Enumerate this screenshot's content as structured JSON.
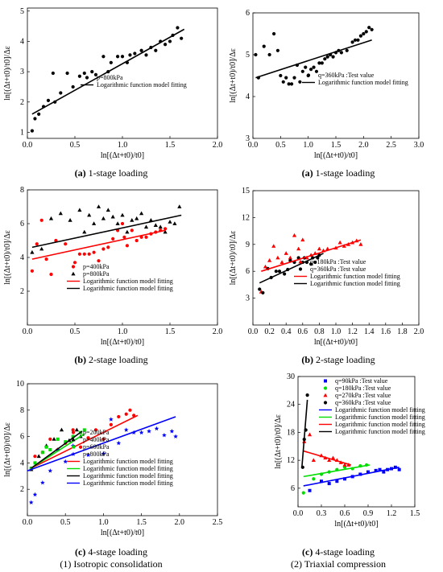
{
  "captions": [
    {
      "id": "a1",
      "label": "(a)",
      "text": " 1-stage loading"
    },
    {
      "id": "a2",
      "label": "(a)",
      "text": " 1-stage loading"
    },
    {
      "id": "b1",
      "label": "(b)",
      "text": " 2-stage loading"
    },
    {
      "id": "b2",
      "label": "(b)",
      "text": " 2-stage loading"
    },
    {
      "id": "c1",
      "label": "(c)",
      "text": " 4-stage loading"
    },
    {
      "id": "c2",
      "label": "(c)",
      "text": " 4-stage loading"
    }
  ],
  "group_titles": [
    "(1) Isotropic consolidation",
    "(2) Triaxial compression"
  ],
  "chart_data": [
    {
      "id": "a1",
      "type": "scatter",
      "xlabel": "ln[(Δt+t0)/t0]",
      "ylabel": "ln[(Δt+t0)/t0]/Δε",
      "xlim": [
        0,
        2.0
      ],
      "ylim": [
        0.8,
        5.1
      ],
      "xticks": [
        "0.0",
        "0.5",
        "1.0",
        "1.5",
        "2.0"
      ],
      "yticks": [
        "1",
        "2",
        "3",
        "4",
        "5"
      ],
      "series": [
        {
          "name": "p=800kPa",
          "marker": "circle",
          "color": "#000000",
          "x": [
            0.05,
            0.08,
            0.12,
            0.17,
            0.22,
            0.27,
            0.29,
            0.35,
            0.42,
            0.48,
            0.55,
            0.6,
            0.68,
            0.72,
            0.8,
            0.85,
            0.88,
            0.95,
            1.0,
            1.05,
            1.08,
            1.13,
            1.2,
            1.25,
            1.3,
            1.35,
            1.4,
            1.45,
            1.5,
            1.53,
            1.58,
            1.62
          ],
          "y": [
            1.05,
            1.45,
            1.6,
            1.85,
            2.05,
            2.95,
            2.0,
            2.3,
            2.95,
            2.5,
            2.85,
            2.95,
            3.0,
            2.9,
            3.5,
            3.0,
            3.3,
            3.5,
            3.5,
            3.3,
            3.55,
            3.6,
            3.7,
            3.55,
            3.8,
            3.7,
            4.0,
            3.9,
            4.0,
            4.2,
            4.45,
            4.1
          ]
        },
        {
          "name": "Logarithmic function model fitting",
          "type": "line",
          "color": "#000000",
          "x": [
            0.05,
            1.65
          ],
          "y": [
            1.6,
            4.4
          ]
        }
      ]
    },
    {
      "id": "a2",
      "type": "scatter",
      "xlabel": "ln[(Δt+t0)/t0]",
      "ylabel": "ln[(Δt+t0)/t0]/Δε",
      "xlim": [
        0,
        3.0
      ],
      "ylim": [
        3.0,
        6.0
      ],
      "xticks": [
        "0.0",
        "0.5",
        "1.0",
        "1.5",
        "2.0",
        "2.5",
        "3.0"
      ],
      "yticks": [
        "3",
        "4",
        "5",
        "6"
      ],
      "series": [
        {
          "name": "q=360kPa :Test value",
          "marker": "circle",
          "color": "#000000",
          "x": [
            0.05,
            0.1,
            0.2,
            0.3,
            0.38,
            0.45,
            0.5,
            0.55,
            0.6,
            0.65,
            0.7,
            0.75,
            0.8,
            0.85,
            0.9,
            0.95,
            1.0,
            1.05,
            1.1,
            1.15,
            1.2,
            1.25,
            1.3,
            1.35,
            1.4,
            1.45,
            1.5,
            1.55,
            1.6,
            1.7,
            1.8,
            1.85,
            1.9,
            1.95,
            2.0,
            2.05,
            2.1,
            2.15
          ],
          "y": [
            5.0,
            4.45,
            5.2,
            5.0,
            5.5,
            5.1,
            4.5,
            4.35,
            4.45,
            4.3,
            4.3,
            4.45,
            4.75,
            4.35,
            4.6,
            4.7,
            4.5,
            4.65,
            4.7,
            4.6,
            4.8,
            4.8,
            4.9,
            4.95,
            5.0,
            4.95,
            5.05,
            5.1,
            5.05,
            5.1,
            5.3,
            5.35,
            5.35,
            5.45,
            5.5,
            5.55,
            5.65,
            5.6
          ]
        },
        {
          "name": "Logarithmic function model fitting",
          "type": "line",
          "color": "#000000",
          "x": [
            0.05,
            2.15
          ],
          "y": [
            4.45,
            5.35
          ]
        }
      ]
    },
    {
      "id": "b1",
      "type": "scatter",
      "xlabel": "ln[(Δt+t0)/t0]",
      "ylabel": "ln[(Δt+t0)/t0]/Δε",
      "xlim": [
        0,
        2.0
      ],
      "ylim": [
        0,
        8
      ],
      "xticks": [
        "0.0",
        "0.5",
        "1.0",
        "1.5",
        "2.0"
      ],
      "yticks": [
        "2",
        "4",
        "6",
        "8"
      ],
      "series": [
        {
          "name": "p=400kPa",
          "marker": "circle",
          "color": "#ff0000",
          "x": [
            0.05,
            0.1,
            0.15,
            0.2,
            0.25,
            0.3,
            0.4,
            0.5,
            0.55,
            0.6,
            0.65,
            0.7,
            0.75,
            0.8,
            0.85,
            0.9,
            0.95,
            1.0,
            1.02,
            1.05,
            1.1,
            1.15,
            1.2,
            1.25,
            1.3,
            1.35,
            1.4,
            1.45
          ],
          "y": [
            3.2,
            4.8,
            6.2,
            3.9,
            3.0,
            5.0,
            4.8,
            3.7,
            4.2,
            4.2,
            4.2,
            4.3,
            3.8,
            4.5,
            4.6,
            5.1,
            5.6,
            6.0,
            5.2,
            4.7,
            5.6,
            5.0,
            5.2,
            5.2,
            5.4,
            5.5,
            5.6,
            5.7
          ]
        },
        {
          "name": "p=800kPa",
          "marker": "triangle",
          "color": "#000000",
          "x": [
            0.05,
            0.15,
            0.25,
            0.35,
            0.45,
            0.55,
            0.6,
            0.65,
            0.7,
            0.75,
            0.8,
            0.85,
            0.9,
            0.95,
            1.0,
            1.05,
            1.1,
            1.15,
            1.2,
            1.25,
            1.3,
            1.35,
            1.4,
            1.45,
            1.5,
            1.55,
            1.6
          ],
          "y": [
            4.3,
            4.5,
            6.3,
            6.6,
            6.2,
            6.8,
            5.5,
            6.5,
            6.0,
            7.0,
            6.3,
            6.8,
            6.4,
            6.0,
            6.5,
            5.5,
            6.2,
            6.3,
            6.6,
            5.8,
            6.2,
            5.9,
            5.8,
            5.5,
            6.1,
            6.0,
            7.0
          ]
        },
        {
          "name": "Logarithmic function model fitting",
          "type": "line",
          "color": "#ff0000",
          "x": [
            0.05,
            1.45
          ],
          "y": [
            3.9,
            5.6
          ]
        },
        {
          "name": "Logarithmic function model fitting",
          "type": "line",
          "color": "#000000",
          "x": [
            0.05,
            1.62
          ],
          "y": [
            4.6,
            6.5
          ]
        }
      ]
    },
    {
      "id": "b2",
      "type": "scatter",
      "xlabel": "ln[(Δt+t0)/t0]",
      "ylabel": "ln[(Δt+t0)/t0]/Δε",
      "xlim": [
        0,
        2.0
      ],
      "ylim": [
        0,
        15
      ],
      "xticks": [
        "0.0",
        "0.2",
        "0.4",
        "0.6",
        "0.8",
        "1.0",
        "1.2",
        "1.4",
        "1.6",
        "1.8",
        "2.0"
      ],
      "yticks": [
        "3",
        "6",
        "9",
        "12",
        "15"
      ],
      "series": [
        {
          "name": "q=180kPa :Test value",
          "marker": "triangle",
          "color": "#ff0000",
          "x": [
            0.1,
            0.15,
            0.2,
            0.25,
            0.3,
            0.35,
            0.4,
            0.45,
            0.5,
            0.55,
            0.6,
            0.65,
            0.7,
            0.75,
            0.8,
            0.85,
            0.9,
            1.0,
            1.05,
            1.1,
            1.15,
            1.2,
            1.25,
            1.3
          ],
          "y": [
            3.7,
            6.5,
            7.2,
            8.8,
            7.5,
            7.0,
            8.0,
            7.5,
            10.0,
            8.5,
            9.5,
            7.5,
            7.8,
            8.0,
            8.5,
            8.3,
            8.5,
            8.6,
            9.2,
            8.8,
            9.0,
            9.2,
            9.4,
            9.0
          ]
        },
        {
          "name": "q=360kPa :Test value",
          "marker": "circle",
          "color": "#000000",
          "x": [
            0.08,
            0.12,
            0.18,
            0.22,
            0.28,
            0.32,
            0.38,
            0.42,
            0.45,
            0.5,
            0.55,
            0.6,
            0.62,
            0.65,
            0.7,
            0.72,
            0.75,
            0.78,
            0.8
          ],
          "y": [
            4.0,
            3.6,
            6.3,
            5.3,
            6.0,
            6.0,
            5.7,
            6.2,
            7.2,
            7.0,
            7.5,
            7.0,
            7.5,
            7.0,
            6.8,
            7.5,
            7.0,
            7.5,
            7.8
          ]
        },
        {
          "name": "Logarithmic function model fitting",
          "type": "line",
          "color": "#ff0000",
          "x": [
            0.1,
            1.3
          ],
          "y": [
            6.0,
            9.5
          ]
        },
        {
          "name": "Logarithmic function model fitting",
          "type": "line",
          "color": "#000000",
          "x": [
            0.08,
            0.85
          ],
          "y": [
            4.7,
            8.0
          ]
        }
      ]
    },
    {
      "id": "c1",
      "type": "scatter",
      "xlabel": "ln[(Δt+t0)/t0]",
      "ylabel": "ln[(Δt+t0)/t0]/Δε",
      "xlim": [
        0,
        2.5
      ],
      "ylim": [
        0,
        10
      ],
      "xticks": [
        "0.0",
        "0.5",
        "1.0",
        "1.5",
        "2.0",
        "2.5"
      ],
      "yticks": [
        "2",
        "4",
        "6",
        "8",
        "10"
      ],
      "series": [
        {
          "name": "p=200kPa",
          "marker": "circle",
          "color": "#ff0000",
          "x": [
            0.1,
            0.2,
            0.3,
            0.4,
            0.5,
            0.6,
            0.7,
            0.8,
            0.9,
            1.0,
            1.1,
            1.2,
            1.3,
            1.35,
            1.4
          ],
          "y": [
            4.5,
            4.8,
            5.8,
            5.0,
            5.5,
            6.5,
            5.2,
            5.9,
            6.5,
            5.8,
            6.9,
            7.5,
            7.7,
            8.0,
            7.6
          ]
        },
        {
          "name": "p=400kPa",
          "marker": "triangle",
          "color": "#000000",
          "x": [
            0.05,
            0.15,
            0.25,
            0.35,
            0.45,
            0.55,
            0.65,
            0.7
          ],
          "y": [
            3.5,
            4.5,
            5.3,
            5.8,
            6.5,
            5.7,
            6.5,
            6.0
          ]
        },
        {
          "name": "p=600kPa",
          "marker": "square",
          "color": "#00dd00",
          "x": [
            0.05,
            0.1,
            0.2,
            0.25,
            0.3,
            0.4,
            0.5,
            0.6,
            0.7,
            0.75
          ],
          "y": [
            3.6,
            4.0,
            4.8,
            5.2,
            5.0,
            5.8,
            5.6,
            6.0,
            6.3,
            6.5
          ]
        },
        {
          "name": "p=800kPa",
          "marker": "star",
          "color": "#0000ff",
          "x": [
            0.05,
            0.1,
            0.2,
            0.3,
            0.4,
            0.5,
            0.6,
            0.8,
            1.0,
            1.1,
            1.2,
            1.3,
            1.4,
            1.5,
            1.6,
            1.7,
            1.8,
            1.9,
            1.95
          ],
          "y": [
            1.0,
            1.6,
            2.5,
            3.4,
            5.0,
            4.1,
            5.3,
            4.6,
            4.7,
            7.3,
            5.5,
            6.5,
            6.3,
            6.3,
            6.4,
            6.6,
            6.1,
            6.4,
            6.0
          ]
        },
        {
          "name": "Logarithmic function model fitting",
          "type": "line",
          "color": "#ff0000",
          "x": [
            0.05,
            1.45
          ],
          "y": [
            3.6,
            7.6
          ]
        },
        {
          "name": "Logarithmic function model fitting",
          "type": "line",
          "color": "#00dd00",
          "x": [
            0.05,
            0.75
          ],
          "y": [
            3.6,
            6.2
          ]
        },
        {
          "name": "Logarithmic function model fitting",
          "type": "line",
          "color": "#000000",
          "x": [
            0.05,
            0.72
          ],
          "y": [
            3.6,
            6.4
          ]
        },
        {
          "name": "Logarithmic function model fitting",
          "type": "line",
          "color": "#0000ff",
          "x": [
            0.0,
            1.95
          ],
          "y": [
            3.4,
            7.5
          ]
        }
      ]
    },
    {
      "id": "c2",
      "type": "scatter",
      "xlabel": "ln[(Δt+t0)/t0]",
      "ylabel": "ln[(Δt+t0)/t0]/Δε",
      "xlim": [
        0,
        1.5
      ],
      "ylim": [
        2,
        30
      ],
      "xticks": [
        "0.0",
        "0.3",
        "0.6",
        "0.9",
        "1.2",
        "1.5"
      ],
      "yticks": [
        "6",
        "12",
        "18",
        "24",
        "30"
      ],
      "series": [
        {
          "name": "q=90kPa :Test value",
          "marker": "square",
          "color": "#0000ff",
          "x": [
            0.15,
            0.3,
            0.4,
            0.5,
            0.6,
            0.7,
            0.8,
            0.9,
            1.0,
            1.05,
            1.1,
            1.15,
            1.2,
            1.25,
            1.3
          ],
          "y": [
            5.5,
            7.5,
            7.0,
            7.5,
            8.0,
            8.5,
            9.0,
            9.5,
            9.8,
            10.0,
            9.5,
            10.0,
            10.2,
            10.5,
            10.0
          ]
        },
        {
          "name": "q=180kPa :Test value",
          "marker": "circle",
          "color": "#00dd00",
          "x": [
            0.07,
            0.2,
            0.3,
            0.4,
            0.5,
            0.6,
            0.7,
            0.8,
            0.88
          ],
          "y": [
            5.0,
            8.0,
            9.0,
            9.5,
            10.0,
            10.5,
            10.2,
            10.8,
            11.0
          ]
        },
        {
          "name": "q=270kPa :Test value",
          "marker": "triangle",
          "color": "#ff0000",
          "x": [
            0.08,
            0.15,
            0.2,
            0.3,
            0.35,
            0.4,
            0.45,
            0.5,
            0.55,
            0.6,
            0.65
          ],
          "y": [
            16.0,
            17.5,
            12.0,
            13.0,
            12.5,
            12.0,
            12.5,
            12.0,
            11.5,
            11.0,
            11.0
          ]
        },
        {
          "name": "q=360kPa :Test value",
          "marker": "circle",
          "color": "#000000",
          "x": [
            0.06,
            0.08,
            0.1,
            0.12
          ],
          "y": [
            10.5,
            16.5,
            18.5,
            26.0
          ]
        },
        {
          "name": "Logarithmic function model fitting",
          "type": "line",
          "color": "#0000ff",
          "x": [
            0.07,
            1.3
          ],
          "y": [
            6.5,
            10.5
          ]
        },
        {
          "name": "Logarithmic function model fitting",
          "type": "line",
          "color": "#00dd00",
          "x": [
            0.07,
            0.92
          ],
          "y": [
            8.5,
            11.0
          ]
        },
        {
          "name": "Logarithmic function model fitting",
          "type": "line",
          "color": "#ff0000",
          "x": [
            0.07,
            0.68
          ],
          "y": [
            14.0,
            11.0
          ]
        },
        {
          "name": "Logarithmic function model fitting",
          "type": "line",
          "color": "#000000",
          "x": [
            0.05,
            0.12
          ],
          "y": [
            10.5,
            25.0
          ]
        }
      ]
    }
  ]
}
